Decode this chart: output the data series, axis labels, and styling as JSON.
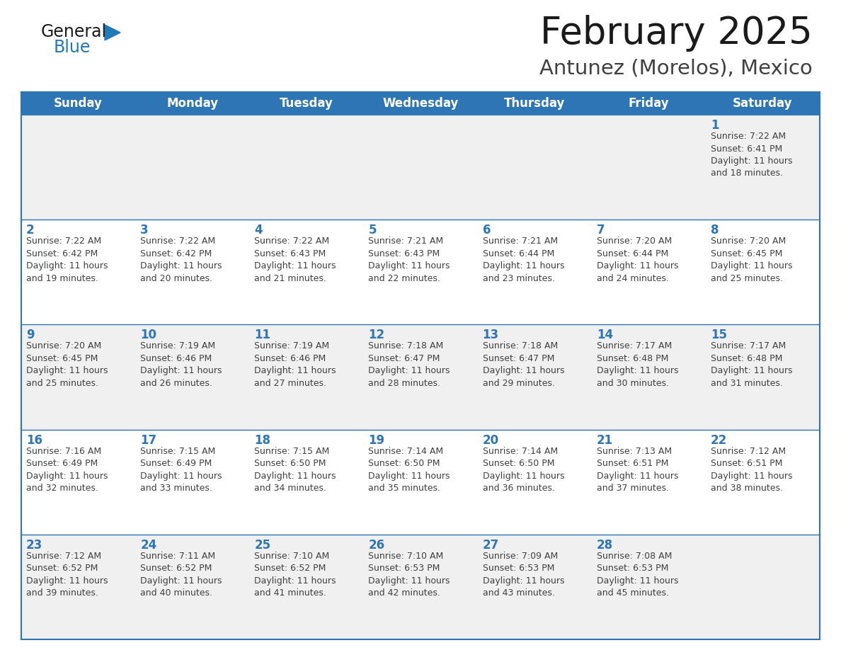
{
  "title": "February 2025",
  "subtitle": "Antunez (Morelos), Mexico",
  "days_of_week": [
    "Sunday",
    "Monday",
    "Tuesday",
    "Wednesday",
    "Thursday",
    "Friday",
    "Saturday"
  ],
  "header_bg": "#2E75B6",
  "header_text": "#FFFFFF",
  "cell_bg_even": "#F0F0F0",
  "cell_bg_odd": "#FFFFFF",
  "cell_border": "#2E75B6",
  "day_number_color": "#2E75B6",
  "info_text_color": "#404040",
  "title_color": "#1A1A1A",
  "subtitle_color": "#404040",
  "calendar_data": [
    [
      null,
      null,
      null,
      null,
      null,
      null,
      {
        "day": 1,
        "sunrise": "7:22 AM",
        "sunset": "6:41 PM",
        "daylight": "11 hours and 18 minutes."
      }
    ],
    [
      {
        "day": 2,
        "sunrise": "7:22 AM",
        "sunset": "6:42 PM",
        "daylight": "11 hours and 19 minutes."
      },
      {
        "day": 3,
        "sunrise": "7:22 AM",
        "sunset": "6:42 PM",
        "daylight": "11 hours and 20 minutes."
      },
      {
        "day": 4,
        "sunrise": "7:22 AM",
        "sunset": "6:43 PM",
        "daylight": "11 hours and 21 minutes."
      },
      {
        "day": 5,
        "sunrise": "7:21 AM",
        "sunset": "6:43 PM",
        "daylight": "11 hours and 22 minutes."
      },
      {
        "day": 6,
        "sunrise": "7:21 AM",
        "sunset": "6:44 PM",
        "daylight": "11 hours and 23 minutes."
      },
      {
        "day": 7,
        "sunrise": "7:20 AM",
        "sunset": "6:44 PM",
        "daylight": "11 hours and 24 minutes."
      },
      {
        "day": 8,
        "sunrise": "7:20 AM",
        "sunset": "6:45 PM",
        "daylight": "11 hours and 25 minutes."
      }
    ],
    [
      {
        "day": 9,
        "sunrise": "7:20 AM",
        "sunset": "6:45 PM",
        "daylight": "11 hours and 25 minutes."
      },
      {
        "day": 10,
        "sunrise": "7:19 AM",
        "sunset": "6:46 PM",
        "daylight": "11 hours and 26 minutes."
      },
      {
        "day": 11,
        "sunrise": "7:19 AM",
        "sunset": "6:46 PM",
        "daylight": "11 hours and 27 minutes."
      },
      {
        "day": 12,
        "sunrise": "7:18 AM",
        "sunset": "6:47 PM",
        "daylight": "11 hours and 28 minutes."
      },
      {
        "day": 13,
        "sunrise": "7:18 AM",
        "sunset": "6:47 PM",
        "daylight": "11 hours and 29 minutes."
      },
      {
        "day": 14,
        "sunrise": "7:17 AM",
        "sunset": "6:48 PM",
        "daylight": "11 hours and 30 minutes."
      },
      {
        "day": 15,
        "sunrise": "7:17 AM",
        "sunset": "6:48 PM",
        "daylight": "11 hours and 31 minutes."
      }
    ],
    [
      {
        "day": 16,
        "sunrise": "7:16 AM",
        "sunset": "6:49 PM",
        "daylight": "11 hours and 32 minutes."
      },
      {
        "day": 17,
        "sunrise": "7:15 AM",
        "sunset": "6:49 PM",
        "daylight": "11 hours and 33 minutes."
      },
      {
        "day": 18,
        "sunrise": "7:15 AM",
        "sunset": "6:50 PM",
        "daylight": "11 hours and 34 minutes."
      },
      {
        "day": 19,
        "sunrise": "7:14 AM",
        "sunset": "6:50 PM",
        "daylight": "11 hours and 35 minutes."
      },
      {
        "day": 20,
        "sunrise": "7:14 AM",
        "sunset": "6:50 PM",
        "daylight": "11 hours and 36 minutes."
      },
      {
        "day": 21,
        "sunrise": "7:13 AM",
        "sunset": "6:51 PM",
        "daylight": "11 hours and 37 minutes."
      },
      {
        "day": 22,
        "sunrise": "7:12 AM",
        "sunset": "6:51 PM",
        "daylight": "11 hours and 38 minutes."
      }
    ],
    [
      {
        "day": 23,
        "sunrise": "7:12 AM",
        "sunset": "6:52 PM",
        "daylight": "11 hours and 39 minutes."
      },
      {
        "day": 24,
        "sunrise": "7:11 AM",
        "sunset": "6:52 PM",
        "daylight": "11 hours and 40 minutes."
      },
      {
        "day": 25,
        "sunrise": "7:10 AM",
        "sunset": "6:52 PM",
        "daylight": "11 hours and 41 minutes."
      },
      {
        "day": 26,
        "sunrise": "7:10 AM",
        "sunset": "6:53 PM",
        "daylight": "11 hours and 42 minutes."
      },
      {
        "day": 27,
        "sunrise": "7:09 AM",
        "sunset": "6:53 PM",
        "daylight": "11 hours and 43 minutes."
      },
      {
        "day": 28,
        "sunrise": "7:08 AM",
        "sunset": "6:53 PM",
        "daylight": "11 hours and 45 minutes."
      },
      null
    ]
  ],
  "logo_general_color": "#1A1A1A",
  "logo_blue_color": "#2179B5",
  "title_fontsize": 38,
  "subtitle_fontsize": 21,
  "header_fontsize": 12,
  "day_num_fontsize": 12,
  "info_fontsize": 9.0
}
